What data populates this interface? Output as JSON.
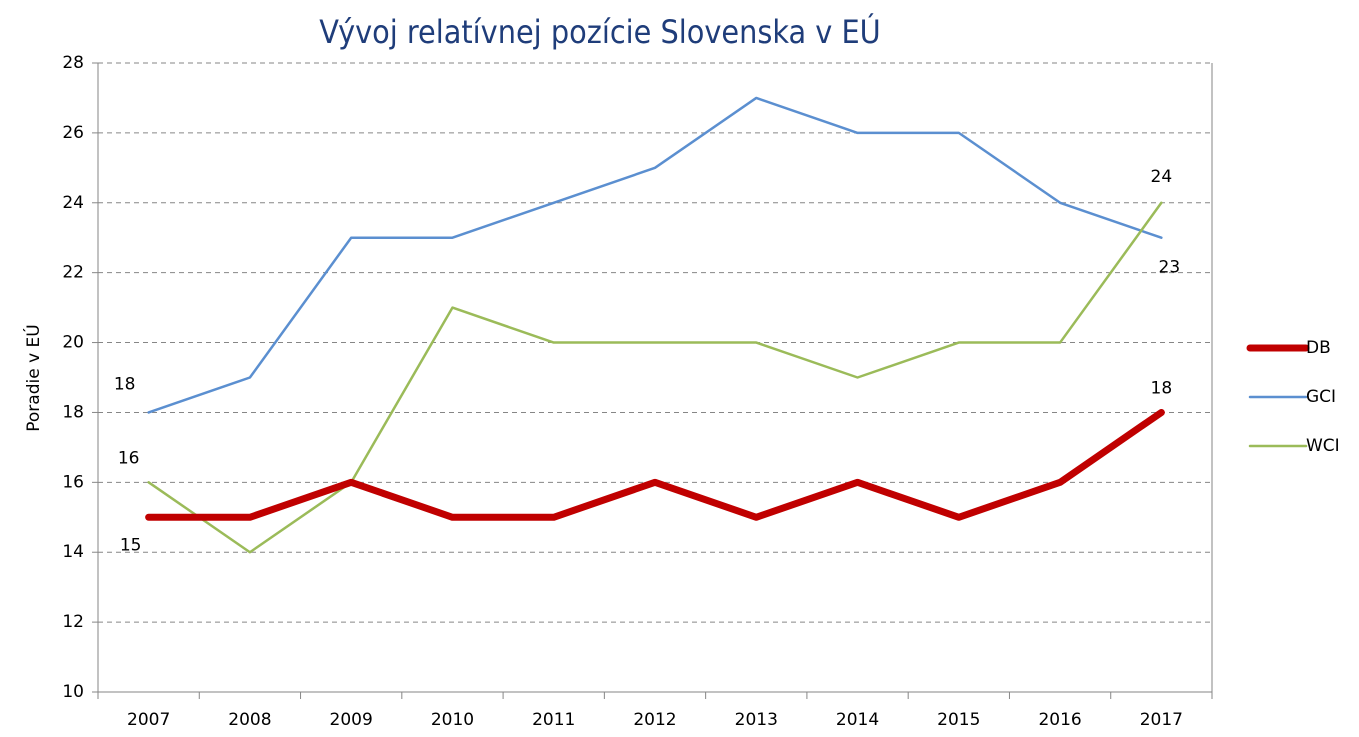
{
  "chart_data": {
    "type": "line",
    "title": "Vývoj relatívnej pozície Slovenska v EÚ",
    "y_label": "Poradie v EÚ",
    "categories": [
      "2007",
      "2008",
      "2009",
      "2010",
      "2011",
      "2012",
      "2013",
      "2014",
      "2015",
      "2016",
      "2017"
    ],
    "series": [
      {
        "name": "DB",
        "color": "#c00000",
        "line_width": 7,
        "values": [
          15,
          15,
          16,
          15,
          15,
          16,
          15,
          16,
          15,
          16,
          18
        ]
      },
      {
        "name": "GCI",
        "color": "#5b8fd0",
        "line_width": 2.5,
        "values": [
          18,
          19,
          23,
          23,
          24,
          25,
          27,
          26,
          26,
          24,
          23
        ]
      },
      {
        "name": "WCI",
        "color": "#9bbb59",
        "line_width": 2.5,
        "values": [
          16,
          14,
          16,
          21,
          20,
          20,
          20,
          19,
          20,
          20,
          24
        ]
      }
    ],
    "ylim": [
      10,
      28
    ],
    "yticks": [
      10,
      12,
      14,
      16,
      18,
      20,
      22,
      24,
      26,
      28
    ],
    "grid": true,
    "legend": "right"
  }
}
